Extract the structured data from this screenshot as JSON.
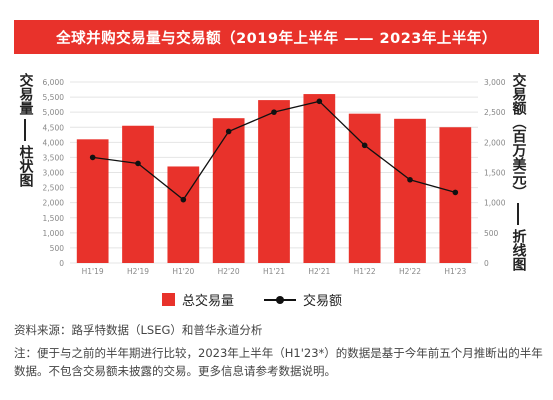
{
  "title": "全球并购交易量与交易额（2019年上半年 —— 2023年上半年）",
  "left_axis_label_top": "交易量",
  "left_axis_label_bottom": "柱状图",
  "right_axis_label_top": "交易额（百万美元）",
  "right_axis_label_bottom": "折线图",
  "legend": {
    "bar_label": "总交易量",
    "line_label": "交易额"
  },
  "source": "资料来源：路孚特数据（LSEG）和普华永道分析",
  "note": "注：便于与之前的半年期进行比较，2023年上半年（H1'23*）的数据是基于今年前五个月推断出的半年数据。不包含交易额未披露的交易。更多信息请参考数据说明。",
  "colors": {
    "bar": "#e8322b",
    "line": "#111111"
  },
  "chart_data": {
    "type": "bar",
    "categories": [
      "H1'19",
      "H2'19",
      "H1'20",
      "H2'20",
      "H1'21",
      "H2'21",
      "H1'22",
      "H2'22",
      "H1'23"
    ],
    "series": [
      {
        "name": "总交易量",
        "type": "bar",
        "axis": "left",
        "values": [
          4100,
          4550,
          3200,
          4800,
          5400,
          5600,
          4950,
          4780,
          4500
        ]
      },
      {
        "name": "交易额",
        "type": "line",
        "axis": "right",
        "values": [
          1750,
          1650,
          1050,
          2180,
          2500,
          2680,
          1950,
          1380,
          1170
        ]
      }
    ],
    "y_left": {
      "min": 0,
      "max": 6000,
      "step": 500,
      "ticks": [
        "0",
        "500",
        "1,000",
        "1,500",
        "2,000",
        "2,500",
        "3,000",
        "3,500",
        "4,000",
        "4,500",
        "5,000",
        "5,500",
        "6,000"
      ]
    },
    "y_right": {
      "min": 0,
      "max": 3000,
      "step": 500,
      "ticks": [
        "0",
        "500",
        "1,000",
        "1,500",
        "2,000",
        "2,500",
        "3,000"
      ]
    },
    "grid": true
  }
}
